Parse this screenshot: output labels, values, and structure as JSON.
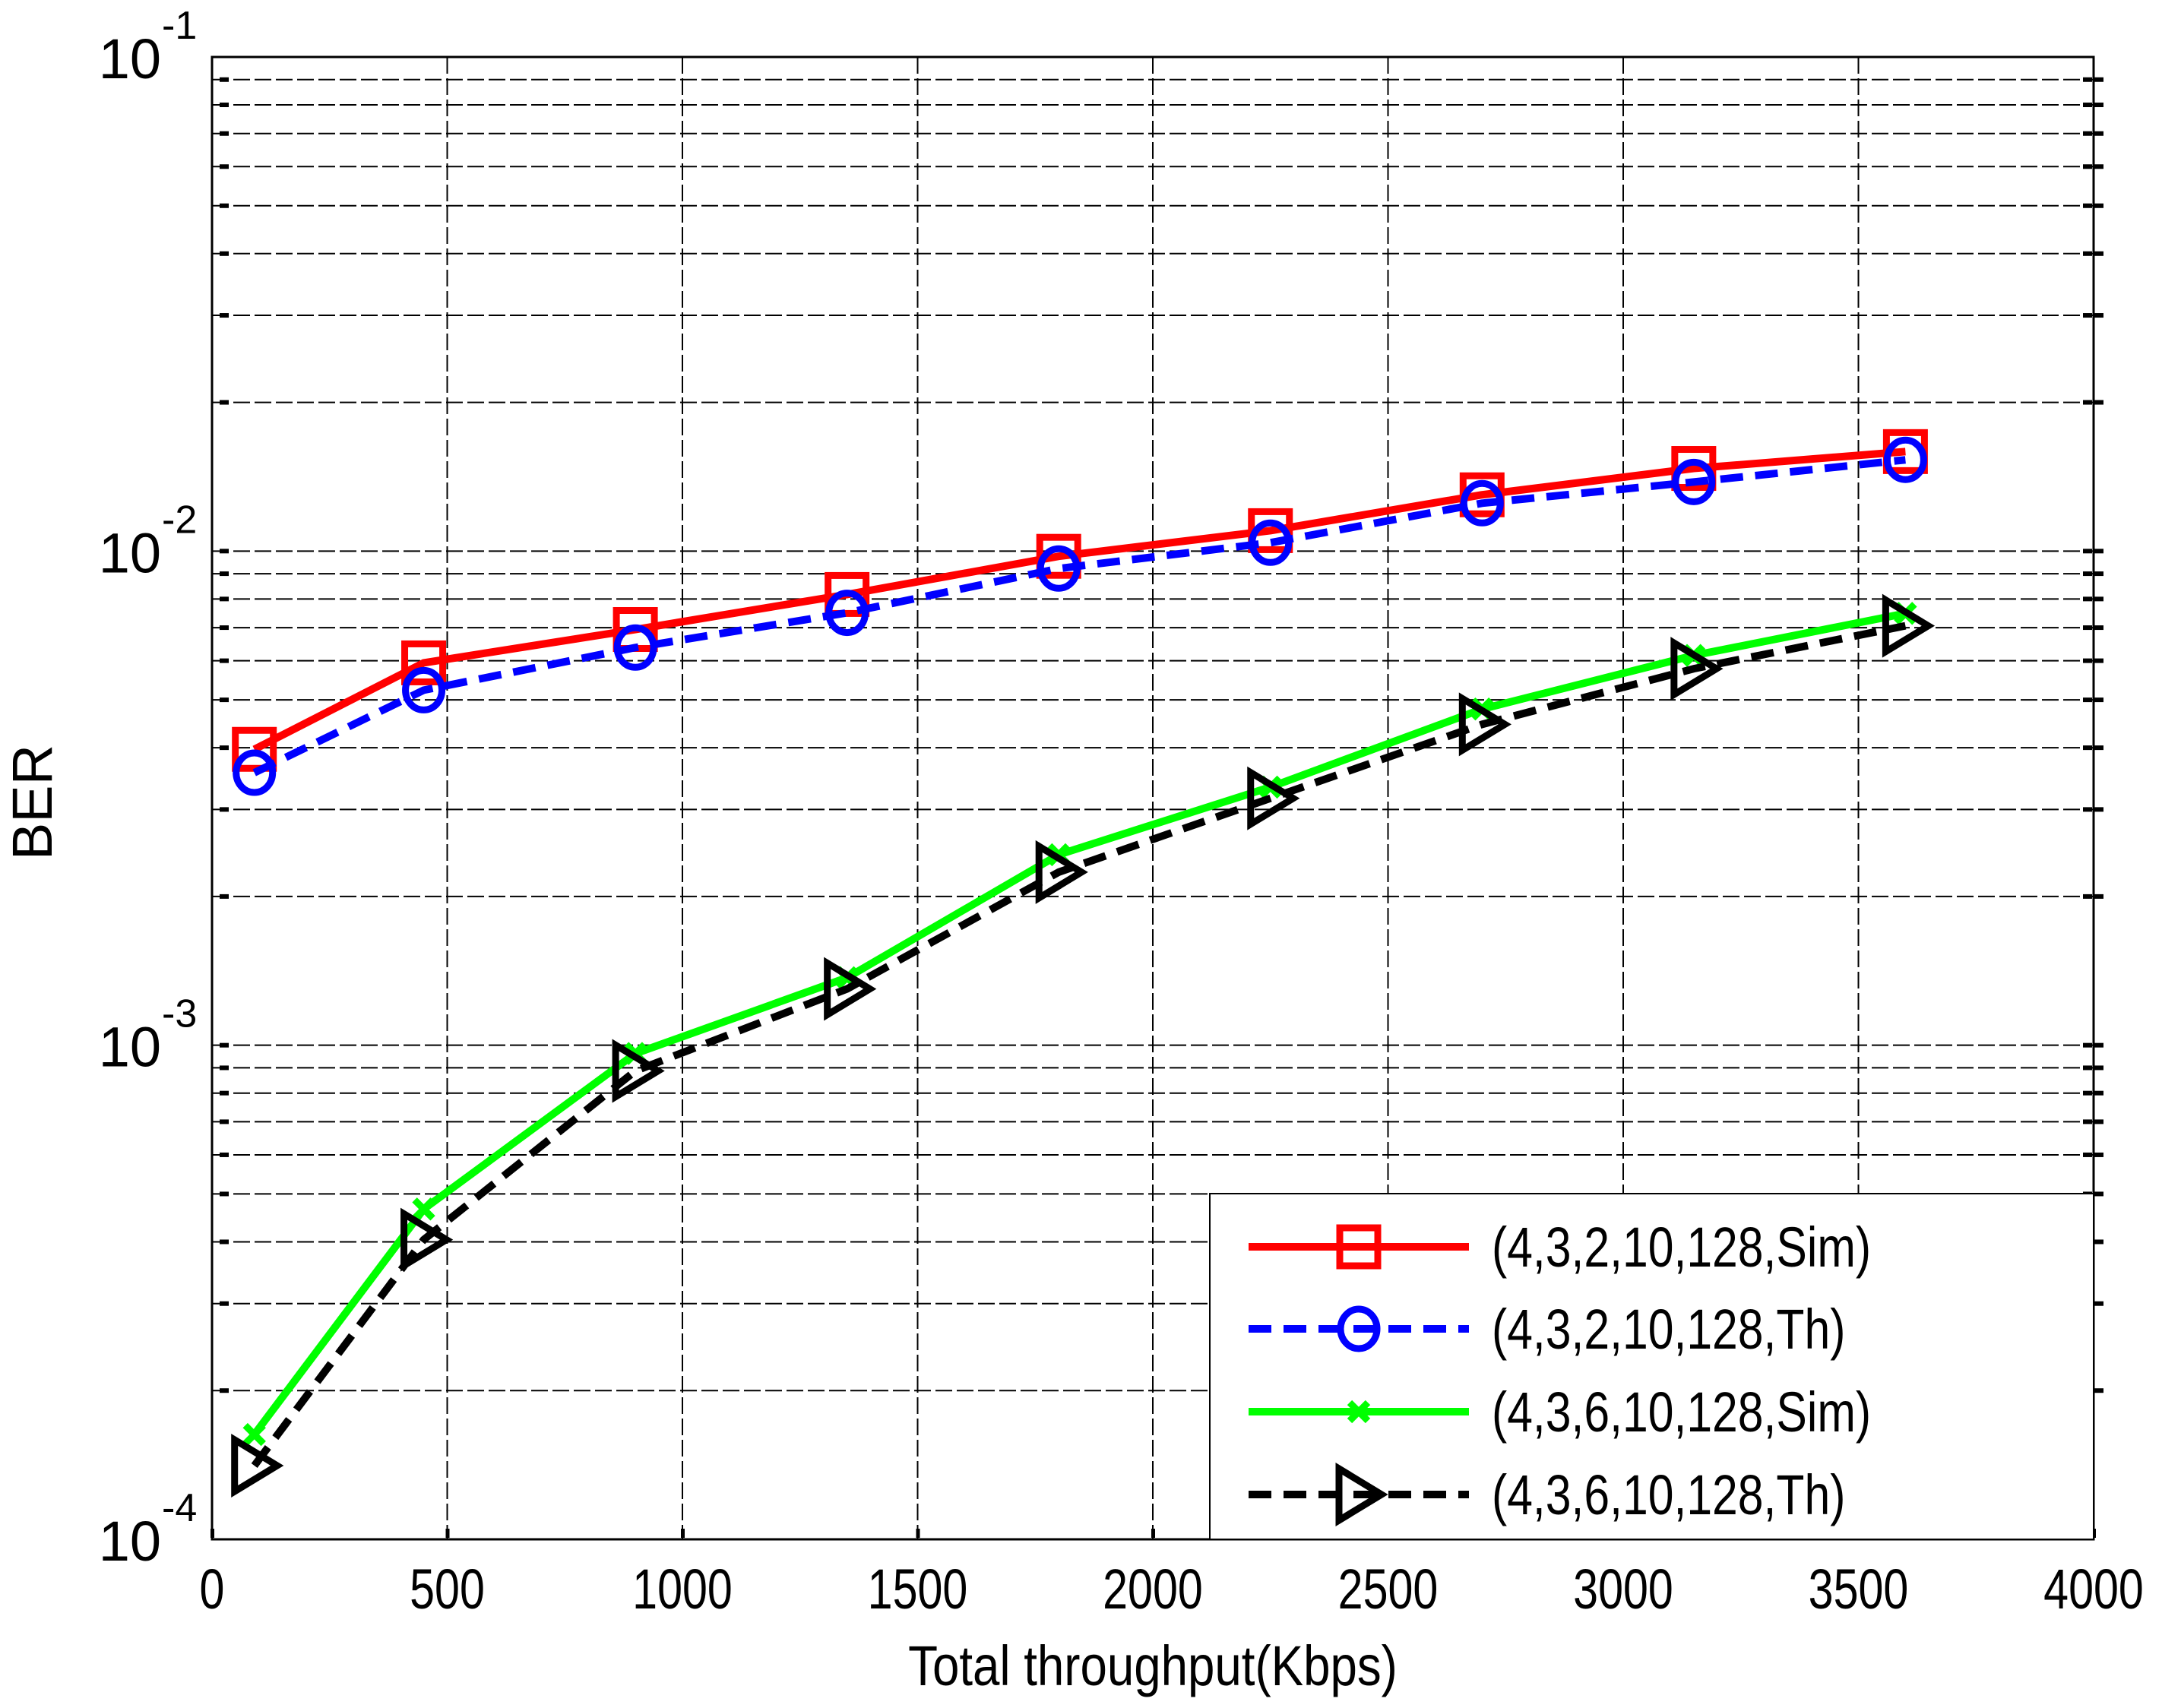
{
  "chart_data": {
    "type": "line",
    "title": "",
    "xlabel": "Total throughput(Kbps)",
    "ylabel": "BER",
    "xlim": [
      0,
      4000
    ],
    "ylim": [
      0.0001,
      0.1
    ],
    "yscale": "log",
    "grid": true,
    "legend_position": "lower right",
    "x_ticks": [
      0,
      500,
      1000,
      1500,
      2000,
      2500,
      3000,
      3500,
      4000
    ],
    "x_tick_labels": [
      "0",
      "500",
      "1000",
      "1500",
      "2000",
      "2500",
      "3000",
      "3500",
      "4000"
    ],
    "y_ticks": [
      0.1,
      0.01,
      0.001,
      0.0001
    ],
    "y_tick_labels": [
      {
        "base": "10",
        "exp": "-1"
      },
      {
        "base": "10",
        "exp": "-2"
      },
      {
        "base": "10",
        "exp": "-3"
      },
      {
        "base": "10",
        "exp": "-4"
      }
    ],
    "x": [
      90,
      450,
      900,
      1350,
      1800,
      2250,
      2700,
      3150,
      3600
    ],
    "series": [
      {
        "name": "(4,3,2,10,128,Sim)",
        "color": "#ff0000",
        "line_style": "solid",
        "marker": "square",
        "values": [
          0.00397,
          0.00594,
          0.00694,
          0.00817,
          0.00976,
          0.011,
          0.013,
          0.0147,
          0.0159
        ]
      },
      {
        "name": "(4,3,2,10,128,Th)",
        "color": "#0000ff",
        "line_style": "dashed",
        "marker": "circle",
        "values": [
          0.00356,
          0.00523,
          0.00638,
          0.0075,
          0.00922,
          0.0104,
          0.0125,
          0.0138,
          0.0153
        ]
      },
      {
        "name": "(4,3,6,10,128,Sim)",
        "color": "#00ff00",
        "line_style": "solid",
        "marker": "x",
        "values": [
          0.000163,
          0.000466,
          0.000962,
          0.00137,
          0.00243,
          0.00333,
          0.00479,
          0.00615,
          0.00748
        ]
      },
      {
        "name": "(4,3,6,10,128,Th)",
        "color": "#000000",
        "line_style": "dashed",
        "marker": "triangle-right",
        "values": [
          0.000141,
          0.000404,
          0.000887,
          0.0013,
          0.00224,
          0.00316,
          0.00446,
          0.00578,
          0.00706
        ]
      }
    ]
  }
}
